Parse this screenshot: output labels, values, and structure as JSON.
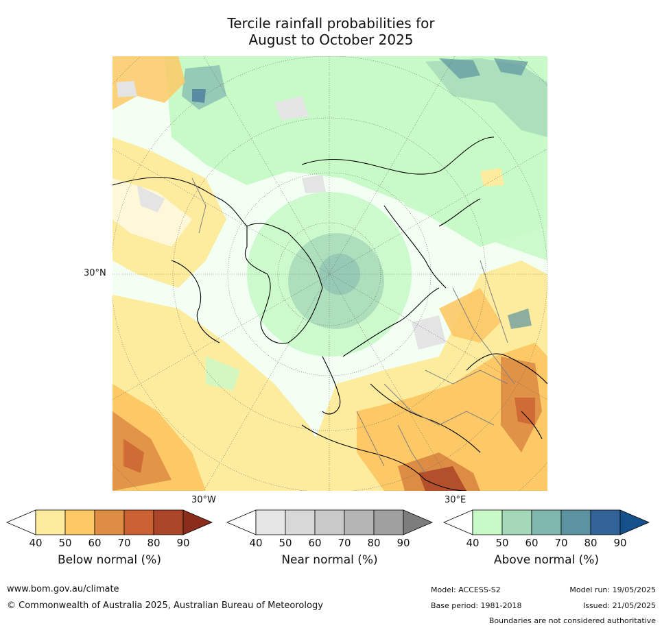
{
  "title": {
    "line1": "Tercile rainfall probabilities for",
    "line2": "August to October 2025"
  },
  "map": {
    "projection": "north-polar-stereographic",
    "lat_label": "30°N",
    "lon_labels": {
      "west": "30°W",
      "east": "30°E"
    },
    "colors": {
      "ocean_wet": "#c8fac8",
      "dry_light": "#fdeb9e",
      "dry_mid": "#fcc966",
      "dry_dark": "#dd8c44",
      "near": "#e4e4e4",
      "coast": "#000000",
      "border": "#808080"
    }
  },
  "colorbars": [
    {
      "id": "below",
      "label": "Below normal (%)",
      "ticks": [
        "40",
        "50",
        "60",
        "70",
        "80",
        "90"
      ],
      "colors": [
        "#ffffff",
        "#fdeb9e",
        "#fcc966",
        "#de8d45",
        "#cb6132",
        "#ab4527",
        "#8a2d1a"
      ]
    },
    {
      "id": "near",
      "label": "Near normal (%)",
      "ticks": [
        "40",
        "50",
        "60",
        "70",
        "80",
        "90"
      ],
      "colors": [
        "#ffffff",
        "#e6e6e6",
        "#d8d8d8",
        "#c9c9c9",
        "#b5b5b5",
        "#a0a0a0",
        "#7d7d7d"
      ]
    },
    {
      "id": "above",
      "label": "Above normal (%)",
      "ticks": [
        "40",
        "50",
        "60",
        "70",
        "80",
        "90"
      ],
      "colors": [
        "#ffffff",
        "#c8fac8",
        "#a5d8b8",
        "#7fb6ae",
        "#5c93a0",
        "#326398",
        "#15508a"
      ]
    }
  ],
  "footer": {
    "website": "www.bom.gov.au/climate",
    "copyright": "© Commonwealth of Australia 2025, Australian Bureau of Meteorology",
    "model": "Model: ACCESS-S2",
    "base_period": "Base period: 1981-2018",
    "model_run": "Model run: 19/05/2025",
    "issued": "Issued: 21/05/2025",
    "disclaimer": "Boundaries are not considered authoritative"
  }
}
